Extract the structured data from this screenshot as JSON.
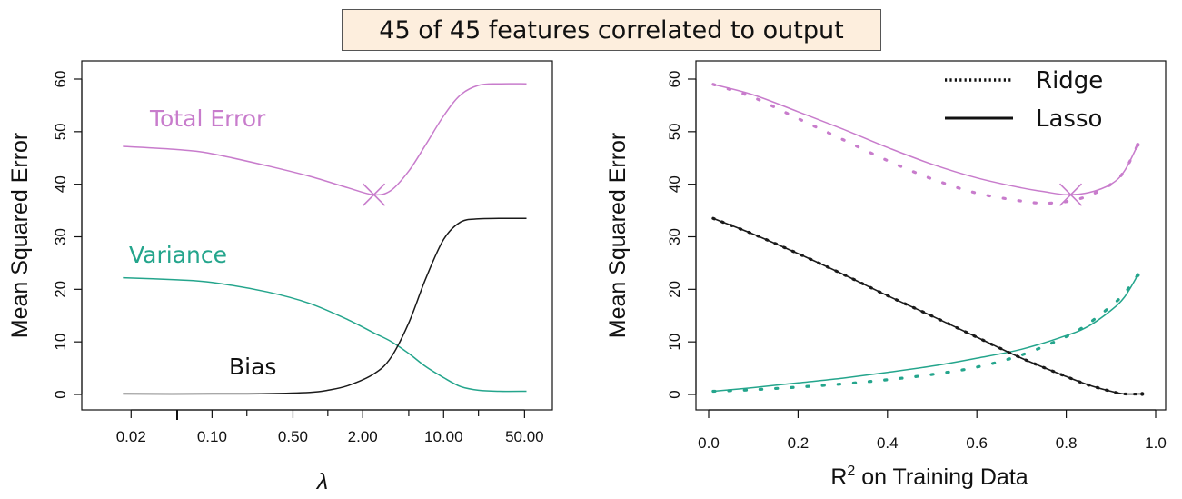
{
  "title": "45 of 45 features correlated to output",
  "colors": {
    "total": "#c87ccc",
    "variance": "#24a58c",
    "bias": "#1a1a1a"
  },
  "chart_data": [
    {
      "type": "line",
      "xlabel": "λ",
      "ylabel": "Mean Squared Error",
      "x_scale": "log",
      "x_tick_labels": [
        "0.02",
        "0.10",
        "0.50",
        "2.00",
        "10.00",
        "50.00"
      ],
      "x_tick_values": [
        0.02,
        0.1,
        0.5,
        2.0,
        10.0,
        50.0
      ],
      "y_ticks": [
        0,
        10,
        20,
        30,
        40,
        50,
        60
      ],
      "ylim": [
        0,
        60
      ],
      "series": [
        {
          "name": "Total Error",
          "x": [
            0.017,
            0.05,
            0.1,
            0.3,
            0.7,
            1.5,
            2.5,
            3.5,
            5,
            7,
            10,
            14,
            20,
            30,
            52
          ],
          "y": [
            47.2,
            46.6,
            45.8,
            43.5,
            41.5,
            39.3,
            38.0,
            38.8,
            42.5,
            47.5,
            53.0,
            57.0,
            58.8,
            59.1,
            59.1
          ]
        },
        {
          "name": "Variance",
          "x": [
            0.017,
            0.05,
            0.1,
            0.3,
            0.7,
            1.5,
            2.5,
            3.5,
            5,
            7,
            10,
            14,
            20,
            30,
            52
          ],
          "y": [
            22.2,
            21.8,
            21.3,
            19.5,
            17.3,
            14.2,
            11.7,
            10.1,
            7.8,
            5.3,
            3.2,
            1.5,
            0.8,
            0.6,
            0.6
          ]
        },
        {
          "name": "Bias",
          "x": [
            0.017,
            0.1,
            0.3,
            0.7,
            1.0,
            1.5,
            2.5,
            3.5,
            5,
            7,
            10,
            14,
            20,
            30,
            52
          ],
          "y": [
            0.1,
            0.1,
            0.15,
            0.4,
            0.8,
            1.7,
            3.9,
            7.0,
            13.6,
            22.0,
            29.5,
            32.8,
            33.4,
            33.5,
            33.5
          ]
        }
      ],
      "marker": {
        "x": 2.5,
        "y": 38.0,
        "shape": "x"
      },
      "annotations": [
        {
          "text": "Total Error",
          "series": "total"
        },
        {
          "text": "Variance",
          "series": "variance"
        },
        {
          "text": "Bias",
          "series": "bias"
        }
      ]
    },
    {
      "type": "line",
      "xlabel": "R² on Training Data",
      "xlabel_base": "R",
      "xlabel_sup": "2",
      "xlabel_rest": " on Training Data",
      "ylabel": "Mean Squared Error",
      "x_ticks": [
        "0.0",
        "0.2",
        "0.4",
        "0.6",
        "0.8",
        "1.0"
      ],
      "x_tick_values": [
        0.0,
        0.2,
        0.4,
        0.6,
        0.8,
        1.0
      ],
      "xlim": [
        0,
        1
      ],
      "y_ticks": [
        0,
        10,
        20,
        30,
        40,
        50,
        60
      ],
      "ylim": [
        0,
        60
      ],
      "legend": {
        "position": "top-right",
        "entries": [
          "Ridge",
          "Lasso"
        ]
      },
      "series": [
        {
          "name": "Lasso",
          "style": "solid",
          "color": "total",
          "x": [
            0.01,
            0.1,
            0.2,
            0.3,
            0.4,
            0.5,
            0.6,
            0.7,
            0.75,
            0.8,
            0.85,
            0.9,
            0.93,
            0.96
          ],
          "y": [
            59.0,
            57.0,
            53.8,
            50.5,
            47.0,
            43.8,
            41.2,
            39.3,
            38.6,
            38.0,
            38.4,
            40.0,
            42.5,
            47.5
          ]
        },
        {
          "name": "Ridge",
          "style": "dotted",
          "color": "total",
          "x": [
            0.01,
            0.1,
            0.2,
            0.3,
            0.4,
            0.5,
            0.6,
            0.7,
            0.75,
            0.8,
            0.85,
            0.9,
            0.93,
            0.96
          ],
          "y": [
            59.0,
            56.5,
            52.5,
            48.5,
            44.5,
            41.0,
            38.3,
            36.8,
            36.4,
            36.7,
            37.8,
            40.0,
            42.5,
            47.5
          ]
        },
        {
          "name": "Lasso",
          "style": "solid",
          "color": "variance",
          "x": [
            0.01,
            0.1,
            0.2,
            0.3,
            0.4,
            0.5,
            0.6,
            0.7,
            0.8,
            0.85,
            0.9,
            0.93,
            0.96
          ],
          "y": [
            0.6,
            1.3,
            2.2,
            3.1,
            4.2,
            5.4,
            6.9,
            8.6,
            11.2,
            13.0,
            16.0,
            18.5,
            22.7
          ]
        },
        {
          "name": "Ridge",
          "style": "dotted",
          "color": "variance",
          "x": [
            0.01,
            0.1,
            0.2,
            0.3,
            0.4,
            0.5,
            0.6,
            0.7,
            0.8,
            0.85,
            0.9,
            0.93,
            0.96
          ],
          "y": [
            0.6,
            0.9,
            1.4,
            2.0,
            2.8,
            3.8,
            5.2,
            7.5,
            11.0,
            13.5,
            16.8,
            19.2,
            22.7
          ]
        },
        {
          "name": "Lasso",
          "style": "solid",
          "color": "bias",
          "x": [
            0.01,
            0.1,
            0.2,
            0.3,
            0.4,
            0.5,
            0.6,
            0.7,
            0.8,
            0.85,
            0.9,
            0.93,
            0.97
          ],
          "y": [
            33.5,
            30.5,
            26.8,
            22.9,
            18.8,
            14.9,
            10.9,
            6.9,
            3.4,
            1.8,
            0.6,
            0.1,
            0.1
          ]
        },
        {
          "name": "Ridge",
          "style": "dotted",
          "color": "bias",
          "x": [
            0.01,
            0.1,
            0.2,
            0.3,
            0.4,
            0.5,
            0.6,
            0.7,
            0.8,
            0.85,
            0.9,
            0.93,
            0.97
          ],
          "y": [
            33.5,
            30.5,
            26.8,
            22.9,
            18.8,
            14.9,
            10.9,
            6.9,
            3.4,
            1.8,
            0.6,
            0.1,
            0.1
          ]
        }
      ],
      "marker": {
        "x": 0.81,
        "y": 38.0,
        "shape": "x"
      }
    }
  ]
}
